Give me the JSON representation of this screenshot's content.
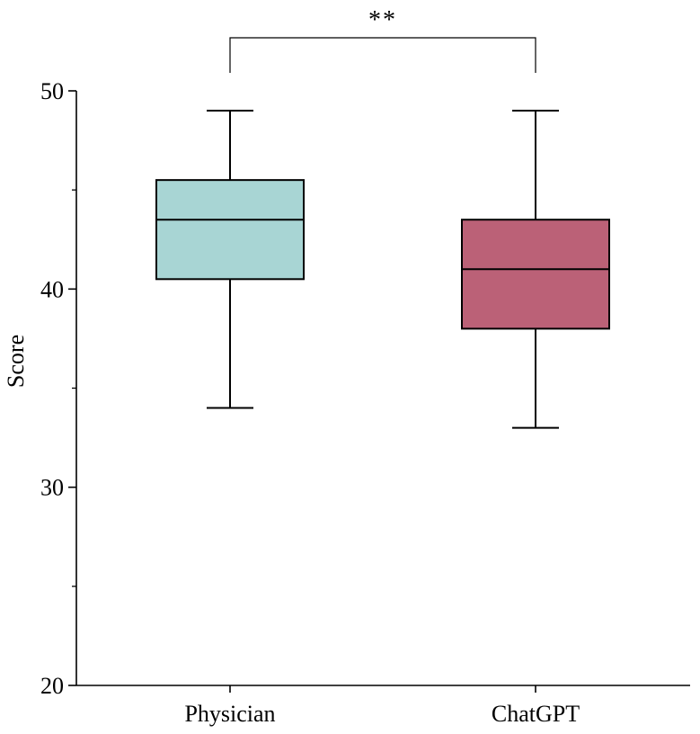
{
  "chart_data": {
    "type": "box",
    "categories": [
      "Physician",
      "ChatGPT"
    ],
    "ylabel": "Score",
    "xlabel": "",
    "ylim": [
      20,
      50
    ],
    "y_ticks": [
      20,
      30,
      40,
      50
    ],
    "y_tick_labels": [
      "20",
      "30",
      "40",
      "50"
    ],
    "grid": false,
    "series": [
      {
        "category": "Physician",
        "min": 34,
        "q1": 40.5,
        "median": 43.5,
        "q3": 45.5,
        "max": 49,
        "color": "#a8d5d4"
      },
      {
        "category": "ChatGPT",
        "min": 33,
        "q1": 38,
        "median": 41,
        "q3": 43.5,
        "max": 49,
        "color": "#bb6177"
      }
    ],
    "annotation": {
      "text": "**",
      "between": [
        "Physician",
        "ChatGPT"
      ]
    }
  }
}
